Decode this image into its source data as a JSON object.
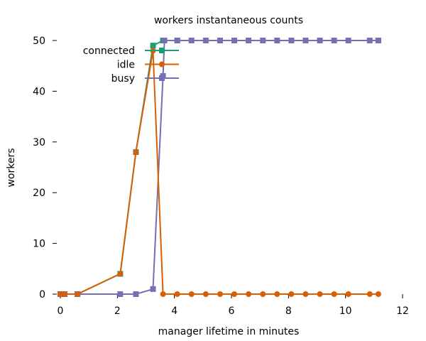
{
  "chart_data": {
    "type": "line",
    "title": "workers instantaneous counts",
    "xlabel": "manager lifetime in minutes",
    "ylabel": "workers",
    "xlim": [
      0,
      12
    ],
    "ylim": [
      0,
      50
    ],
    "x_ticks": [
      0,
      2,
      4,
      6,
      8,
      10,
      12
    ],
    "y_ticks": [
      0,
      10,
      20,
      30,
      40,
      50
    ],
    "grid": false,
    "legend_position": "top-left",
    "series": [
      {
        "name": "connected",
        "color": "#1b9e77",
        "marker": "square",
        "points": [
          [
            0,
            0
          ],
          [
            0.15,
            0
          ],
          [
            0.6,
            0
          ],
          [
            2.1,
            4
          ],
          [
            2.65,
            28
          ],
          [
            3.25,
            49
          ],
          [
            3.6,
            50
          ],
          [
            4.1,
            50
          ],
          [
            11.15,
            50
          ]
        ]
      },
      {
        "name": "idle",
        "color": "#d95f02",
        "marker": "circle",
        "points": [
          [
            0,
            0
          ],
          [
            0.15,
            0
          ],
          [
            0.6,
            0
          ],
          [
            2.1,
            4
          ],
          [
            2.65,
            28
          ],
          [
            3.25,
            48
          ],
          [
            3.6,
            0
          ],
          [
            4.1,
            0
          ],
          [
            4.6,
            0
          ],
          [
            5.1,
            0
          ],
          [
            5.6,
            0
          ],
          [
            6.1,
            0
          ],
          [
            6.6,
            0
          ],
          [
            7.1,
            0
          ],
          [
            7.6,
            0
          ],
          [
            8.1,
            0
          ],
          [
            8.6,
            0
          ],
          [
            9.1,
            0
          ],
          [
            9.6,
            0
          ],
          [
            10.1,
            0
          ],
          [
            10.85,
            0
          ],
          [
            11.15,
            0
          ]
        ]
      },
      {
        "name": "busy",
        "color": "#7570b3",
        "marker": "square",
        "points": [
          [
            0,
            0
          ],
          [
            0.15,
            0
          ],
          [
            0.6,
            0
          ],
          [
            2.1,
            0
          ],
          [
            2.65,
            0
          ],
          [
            3.25,
            1
          ],
          [
            3.6,
            43
          ],
          [
            3.65,
            50
          ],
          [
            4.1,
            50
          ],
          [
            4.6,
            50
          ],
          [
            5.1,
            50
          ],
          [
            5.6,
            50
          ],
          [
            6.1,
            50
          ],
          [
            6.6,
            50
          ],
          [
            7.1,
            50
          ],
          [
            7.6,
            50
          ],
          [
            8.1,
            50
          ],
          [
            8.6,
            50
          ],
          [
            9.1,
            50
          ],
          [
            9.6,
            50
          ],
          [
            10.1,
            50
          ],
          [
            10.85,
            50
          ],
          [
            11.15,
            50
          ]
        ]
      }
    ]
  }
}
